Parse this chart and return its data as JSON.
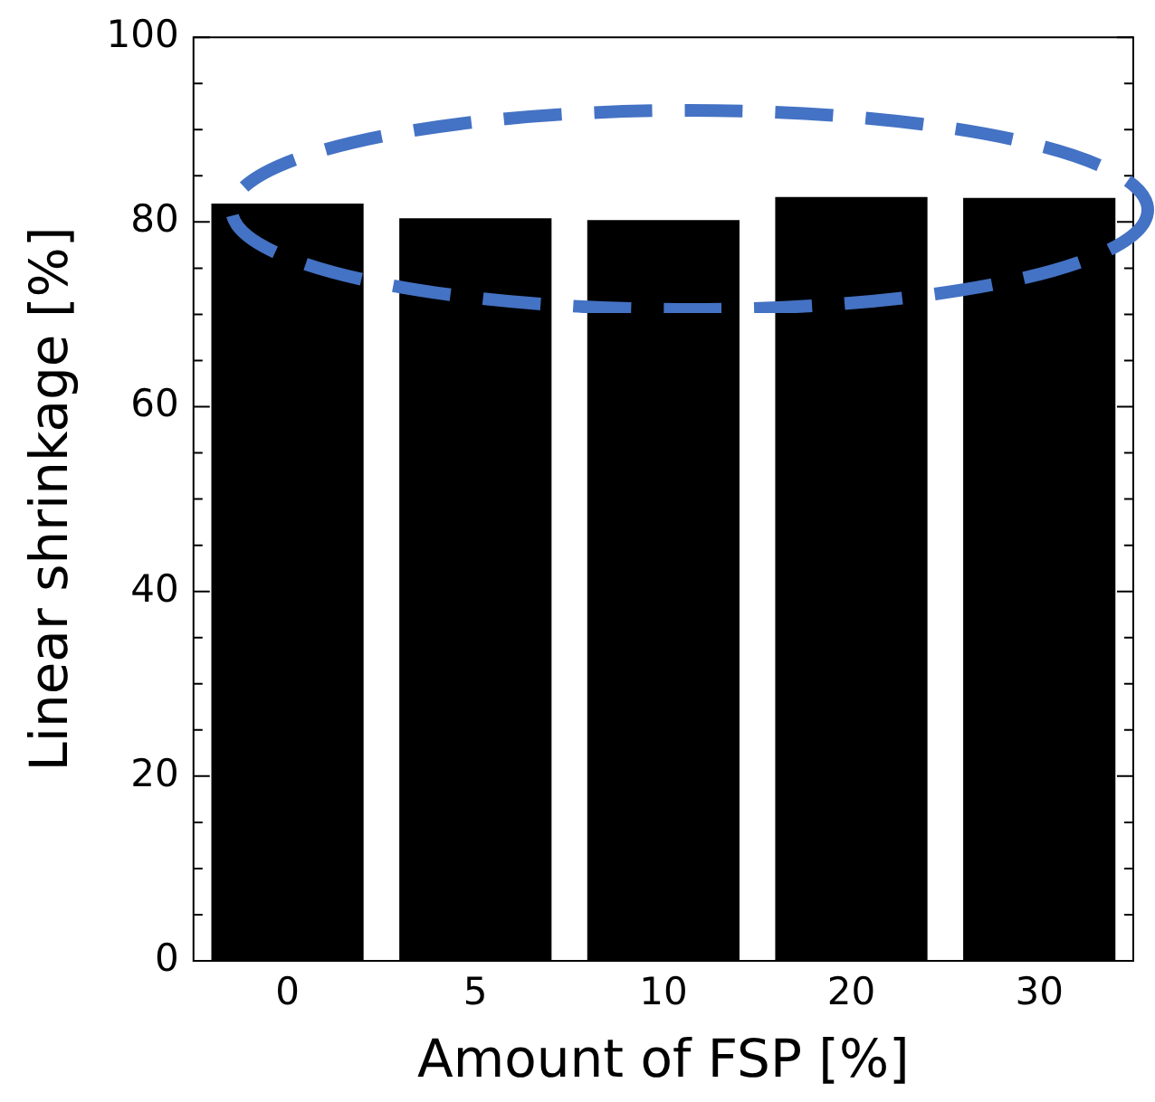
{
  "chart_data": {
    "type": "bar",
    "xlabel": "Amount of FSP [%]",
    "ylabel": "Linear shrinkage [%]",
    "categories": [
      "0",
      "5",
      "10",
      "20",
      "30"
    ],
    "values": [
      82.0,
      80.4,
      80.2,
      82.7,
      82.6
    ],
    "color": "#000000",
    "ylim": [
      0,
      100
    ],
    "yticks": [
      0,
      {
        "value": 5,
        "label": null
      },
      {
        "value": 10,
        "label": null
      },
      {
        "value": 15,
        "label": null
      },
      20,
      {
        "value": 25,
        "label": null
      },
      {
        "value": 30,
        "label": null
      },
      {
        "value": 35,
        "label": null
      },
      40,
      {
        "value": 45,
        "label": null
      },
      {
        "value": 50,
        "label": null
      },
      {
        "value": 55,
        "label": null
      },
      60,
      {
        "value": 65,
        "label": null
      },
      {
        "value": 70,
        "label": null
      },
      {
        "value": 75,
        "label": null
      },
      80,
      {
        "value": 85,
        "label": null
      },
      {
        "value": 90,
        "label": null
      },
      {
        "value": 95,
        "label": null
      },
      100
    ],
    "grid": false,
    "legend": false
  }
}
